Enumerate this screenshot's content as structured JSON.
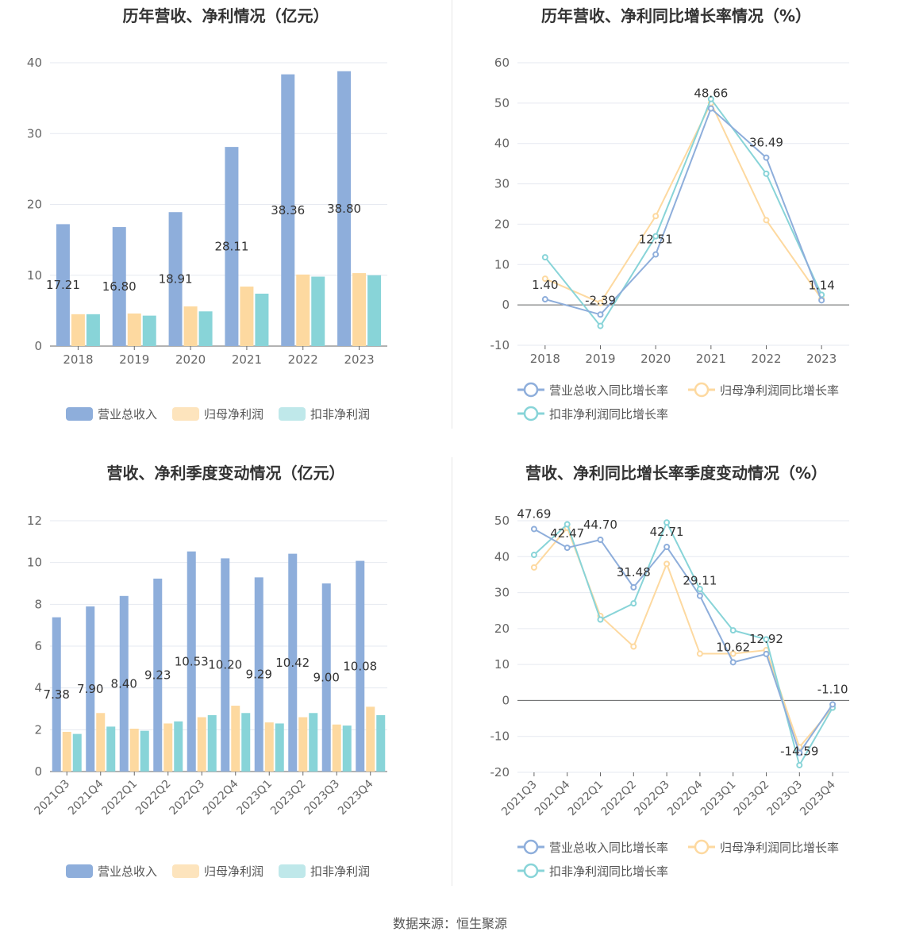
{
  "colors": {
    "revenue": "#8eaedb",
    "net_profit": "#fdd9a0",
    "deducted_profit": "#88d4d8",
    "grid": "#e6e9f0",
    "axis": "#666666"
  },
  "source": "数据来源：恒生聚源",
  "chart_data": [
    {
      "type": "bar",
      "title": "历年营收、净利情况（亿元）",
      "categories": [
        "2018",
        "2019",
        "2020",
        "2021",
        "2022",
        "2023"
      ],
      "ylim": [
        0,
        40
      ],
      "yticks": [
        0,
        10,
        20,
        30,
        40
      ],
      "series": [
        {
          "name": "营业总收入",
          "values": [
            17.21,
            16.8,
            18.91,
            28.11,
            38.36,
            38.8
          ],
          "labels": [
            "17.21",
            "16.80",
            "18.91",
            "28.11",
            "38.36",
            "38.80"
          ]
        },
        {
          "name": "归母净利润",
          "values": [
            4.5,
            4.6,
            5.6,
            8.4,
            10.1,
            10.3
          ]
        },
        {
          "name": "扣非净利润",
          "values": [
            4.5,
            4.3,
            4.9,
            7.4,
            9.8,
            10.0
          ]
        }
      ],
      "legend": "bottom"
    },
    {
      "type": "line",
      "title": "历年营收、净利同比增长率情况（%）",
      "categories": [
        "2018",
        "2019",
        "2020",
        "2021",
        "2022",
        "2023"
      ],
      "ylim": [
        -10,
        60
      ],
      "yticks": [
        -10,
        0,
        10,
        20,
        30,
        40,
        50,
        60
      ],
      "series": [
        {
          "name": "营业总收入同比增长率",
          "values": [
            1.4,
            -2.39,
            12.51,
            48.66,
            36.49,
            1.14
          ],
          "labels": [
            "1.40",
            "-2.39",
            "12.51",
            "48.66",
            "36.49",
            "1.14"
          ]
        },
        {
          "name": "归母净利润同比增长率",
          "values": [
            6.5,
            0.5,
            22.0,
            50.0,
            21.0,
            1.5
          ]
        },
        {
          "name": "扣非净利润同比增长率",
          "values": [
            11.8,
            -5.2,
            17.0,
            51.0,
            32.5,
            2.5
          ]
        }
      ],
      "legend": "bottom"
    },
    {
      "type": "bar",
      "title": "营收、净利季度变动情况（亿元）",
      "categories": [
        "2021Q3",
        "2021Q4",
        "2022Q1",
        "2022Q2",
        "2022Q3",
        "2022Q4",
        "2023Q1",
        "2023Q2",
        "2023Q3",
        "2023Q4"
      ],
      "ylim": [
        0,
        12
      ],
      "yticks": [
        0,
        2,
        4,
        6,
        8,
        10,
        12
      ],
      "series": [
        {
          "name": "营业总收入",
          "values": [
            7.38,
            7.9,
            8.4,
            9.23,
            10.53,
            10.2,
            9.29,
            10.42,
            9.0,
            10.08
          ],
          "labels": [
            "7.38",
            "7.90",
            "8.40",
            "9.23",
            "10.53",
            "10.20",
            "9.29",
            "10.42",
            "9.00",
            "10.08"
          ]
        },
        {
          "name": "归母净利润",
          "values": [
            1.9,
            2.8,
            2.05,
            2.3,
            2.6,
            3.15,
            2.35,
            2.6,
            2.25,
            3.1
          ]
        },
        {
          "name": "扣非净利润",
          "values": [
            1.8,
            2.15,
            1.95,
            2.4,
            2.7,
            2.8,
            2.3,
            2.8,
            2.2,
            2.7
          ]
        }
      ],
      "legend": "bottom"
    },
    {
      "type": "line",
      "title": "营收、净利同比增长率季度变动情况（%）",
      "categories": [
        "2021Q3",
        "2021Q4",
        "2022Q1",
        "2022Q2",
        "2022Q3",
        "2022Q4",
        "2023Q1",
        "2023Q2",
        "2023Q3",
        "2023Q4"
      ],
      "ylim": [
        -20,
        50
      ],
      "yticks": [
        -20,
        -10,
        0,
        10,
        20,
        30,
        40,
        50
      ],
      "series": [
        {
          "name": "营业总收入同比增长率",
          "values": [
            47.69,
            42.47,
            44.7,
            31.48,
            42.71,
            29.11,
            10.62,
            12.92,
            -14.59,
            -1.1
          ],
          "labels": [
            "47.69",
            "42.47",
            "44.70",
            "31.48",
            "42.71",
            "29.11",
            "10.62",
            "12.92",
            "-14.59",
            "-1.10"
          ]
        },
        {
          "name": "归母净利润同比增长率",
          "values": [
            37.0,
            48.0,
            23.5,
            15.0,
            38.0,
            13.0,
            13.0,
            14.0,
            -13.0,
            -2.0
          ]
        },
        {
          "name": "扣非净利润同比增长率",
          "values": [
            40.5,
            49.0,
            22.5,
            27.0,
            49.5,
            31.0,
            19.5,
            17.0,
            -18.0,
            -2.0
          ]
        }
      ],
      "legend": "bottom"
    }
  ]
}
